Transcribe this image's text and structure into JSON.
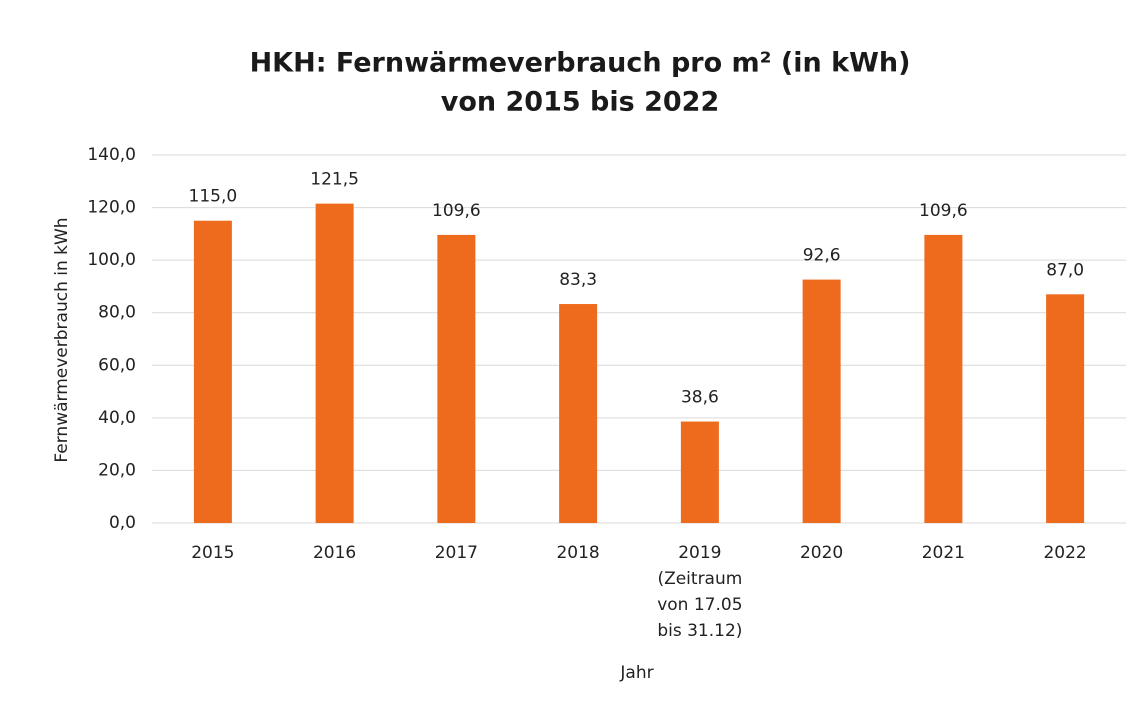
{
  "chart_data": {
    "type": "bar",
    "title": [
      "HKH: Fernwärmeverbrauch pro m² (in kWh)",
      "von 2015 bis 2022"
    ],
    "categories": [
      "2015",
      "2016",
      "2017",
      "2018",
      [
        "2019",
        "(Zeitraum",
        "von 17.05",
        "bis 31.12)"
      ],
      "2020",
      "2021",
      "2022"
    ],
    "values": [
      115.0,
      121.5,
      109.6,
      83.3,
      38.6,
      92.6,
      109.6,
      87.0
    ],
    "value_labels": [
      "115,0",
      "121,5",
      "109,6",
      "83,3",
      "38,6",
      "92,6",
      "109,6",
      "87,0"
    ],
    "color": "#ee6a1c",
    "ylim": [
      0,
      140
    ],
    "yticks": [
      {
        "value": 0,
        "label": "0,0"
      },
      {
        "value": 20,
        "label": "20,0"
      },
      {
        "value": 40,
        "label": "40,0"
      },
      {
        "value": 60,
        "label": "60,0"
      },
      {
        "value": 80,
        "label": "80,0"
      },
      {
        "value": 100,
        "label": "100,0"
      },
      {
        "value": 120,
        "label": "120,0"
      },
      {
        "value": 140,
        "label": "140,0"
      }
    ],
    "y_label": "Fernwärmeverbrauch in kWh",
    "x_label": "Jahr",
    "grid": true
  }
}
